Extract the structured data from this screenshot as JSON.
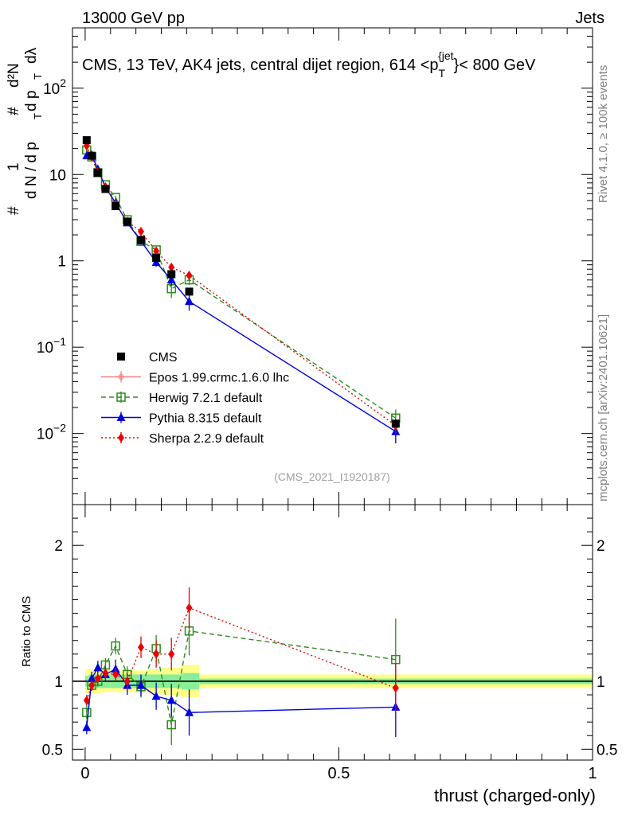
{
  "header": {
    "left": "13000 GeV pp",
    "right": "Jets"
  },
  "side_labels": {
    "rivet": "Rivet 4.1.0, ≥ 100k events",
    "mcplots": "mcplots.cern.ch [arXiv:2401.10621]"
  },
  "chart_data": {
    "type": "line",
    "title": "CMS, 13 TeV, AK4 jets, central dijet region, 614 <p_T^{jet}< 800 GeV",
    "title_parts": {
      "pre": "CMS, 13 TeV, AK4 jets, central dijet region, 614 <p",
      "sub": "T",
      "sup": "{jet",
      "post": "}< 800 GeV"
    },
    "analysis_tag": "(CMS_2021_I1920187)",
    "ylabel_parts": {
      "hash": "#",
      "one": "1",
      "dN": "d N / d p",
      "T": "T",
      "d2N": "d²N",
      "dpT": "d p",
      "dl": "dλ"
    },
    "xlabel": "thrust (charged-only)",
    "ratio_ylabel": "Ratio to CMS",
    "main_ticks": [
      {
        "value": 0.01,
        "base": "10",
        "exp": "−2"
      },
      {
        "value": 0.1,
        "base": "10",
        "exp": "−1"
      },
      {
        "value": 1,
        "base": "1",
        "exp": ""
      },
      {
        "value": 10,
        "base": "10",
        "exp": ""
      },
      {
        "value": 100,
        "base": "10",
        "exp": "2"
      }
    ],
    "ratio_ticks": [
      {
        "value": 0.5,
        "label": "0.5"
      },
      {
        "value": 1,
        "label": "1"
      },
      {
        "value": 2,
        "label": "2"
      }
    ],
    "x_ticks": [
      {
        "value": 0,
        "label": "0"
      },
      {
        "value": 0.5,
        "label": "0.5"
      },
      {
        "value": 1,
        "label": "1"
      }
    ],
    "xlim": [
      -0.025,
      1.0
    ],
    "ylim": [
      0.0015,
      500
    ],
    "ratio_ylim": [
      0.42,
      2.3
    ],
    "data": {
      "name": "CMS",
      "x": [
        0.003,
        0.013,
        0.025,
        0.04,
        0.06,
        0.083,
        0.11,
        0.14,
        0.17,
        0.205,
        0.612
      ],
      "y": [
        25,
        16.5,
        10.5,
        6.8,
        4.3,
        2.85,
        1.75,
        1.08,
        0.7,
        0.44,
        0.013
      ],
      "ratio_band_inner": [
        {
          "x0": 0.0,
          "x1": 0.007,
          "half": 0.04
        },
        {
          "x0": 0.007,
          "x1": 0.019,
          "half": 0.05
        },
        {
          "x0": 0.019,
          "x1": 0.032,
          "half": 0.05
        },
        {
          "x0": 0.032,
          "x1": 0.05,
          "half": 0.05
        },
        {
          "x0": 0.05,
          "x1": 0.07,
          "half": 0.05
        },
        {
          "x0": 0.07,
          "x1": 0.095,
          "half": 0.05
        },
        {
          "x0": 0.095,
          "x1": 0.125,
          "half": 0.05
        },
        {
          "x0": 0.125,
          "x1": 0.155,
          "half": 0.05
        },
        {
          "x0": 0.155,
          "x1": 0.19,
          "half": 0.05
        },
        {
          "x0": 0.19,
          "x1": 0.225,
          "half": 0.06
        },
        {
          "x0": 0.225,
          "x1": 1.0,
          "half": 0.02
        }
      ],
      "ratio_band_outer": [
        {
          "x0": 0.0,
          "x1": 0.007,
          "half": 0.09
        },
        {
          "x0": 0.007,
          "x1": 0.019,
          "half": 0.09
        },
        {
          "x0": 0.019,
          "x1": 0.032,
          "half": 0.09
        },
        {
          "x0": 0.032,
          "x1": 0.05,
          "half": 0.08
        },
        {
          "x0": 0.05,
          "x1": 0.07,
          "half": 0.08
        },
        {
          "x0": 0.07,
          "x1": 0.095,
          "half": 0.08
        },
        {
          "x0": 0.095,
          "x1": 0.125,
          "half": 0.08
        },
        {
          "x0": 0.125,
          "x1": 0.155,
          "half": 0.09
        },
        {
          "x0": 0.155,
          "x1": 0.19,
          "half": 0.1
        },
        {
          "x0": 0.19,
          "x1": 0.225,
          "half": 0.12
        },
        {
          "x0": 0.225,
          "x1": 1.0,
          "half": 0.05
        }
      ]
    },
    "series": [
      {
        "name": "Epos 1.99.crmc.1.6.0 lhc",
        "color": "#f08080",
        "dash": "",
        "marker": "cross",
        "x": [],
        "ratio": [],
        "ratio_err": []
      },
      {
        "name": "Herwig 7.2.1 default",
        "color": "#2e8b1e",
        "dash": "6,4",
        "marker": "open-square",
        "x": [
          0.003,
          0.013,
          0.025,
          0.04,
          0.06,
          0.083,
          0.11,
          0.14,
          0.17,
          0.205,
          0.612
        ],
        "ratio": [
          0.77,
          0.97,
          1.0,
          1.12,
          1.26,
          1.05,
          0.96,
          1.24,
          0.68,
          1.37,
          1.16
        ],
        "ratio_err": [
          0.05,
          0.04,
          0.04,
          0.05,
          0.06,
          0.06,
          0.08,
          0.1,
          0.15,
          0.18,
          0.3
        ]
      },
      {
        "name": "Pythia 8.315 default",
        "color": "#0000dd",
        "dash": "",
        "marker": "triangle",
        "x": [
          0.003,
          0.013,
          0.025,
          0.04,
          0.06,
          0.083,
          0.11,
          0.14,
          0.17,
          0.205,
          0.612
        ],
        "ratio": [
          0.66,
          1.02,
          1.1,
          1.05,
          1.09,
          0.97,
          0.97,
          0.89,
          0.86,
          0.77,
          0.81
        ],
        "ratio_err": [
          0.05,
          0.05,
          0.05,
          0.05,
          0.07,
          0.07,
          0.08,
          0.1,
          0.12,
          0.17,
          0.22
        ]
      },
      {
        "name": "Sherpa 2.2.9 default",
        "color": "#ee0000",
        "dash": "2,3",
        "marker": "diamond",
        "x": [
          0.003,
          0.013,
          0.025,
          0.04,
          0.06,
          0.083,
          0.11,
          0.14,
          0.17,
          0.205,
          0.612
        ],
        "ratio": [
          0.86,
          0.97,
          1.02,
          1.06,
          1.05,
          1.0,
          1.25,
          1.2,
          1.2,
          1.54,
          0.95
        ],
        "ratio_err": [
          0.04,
          0.04,
          0.04,
          0.05,
          0.05,
          0.06,
          0.08,
          0.1,
          0.12,
          0.15,
          0.18
        ]
      }
    ]
  }
}
